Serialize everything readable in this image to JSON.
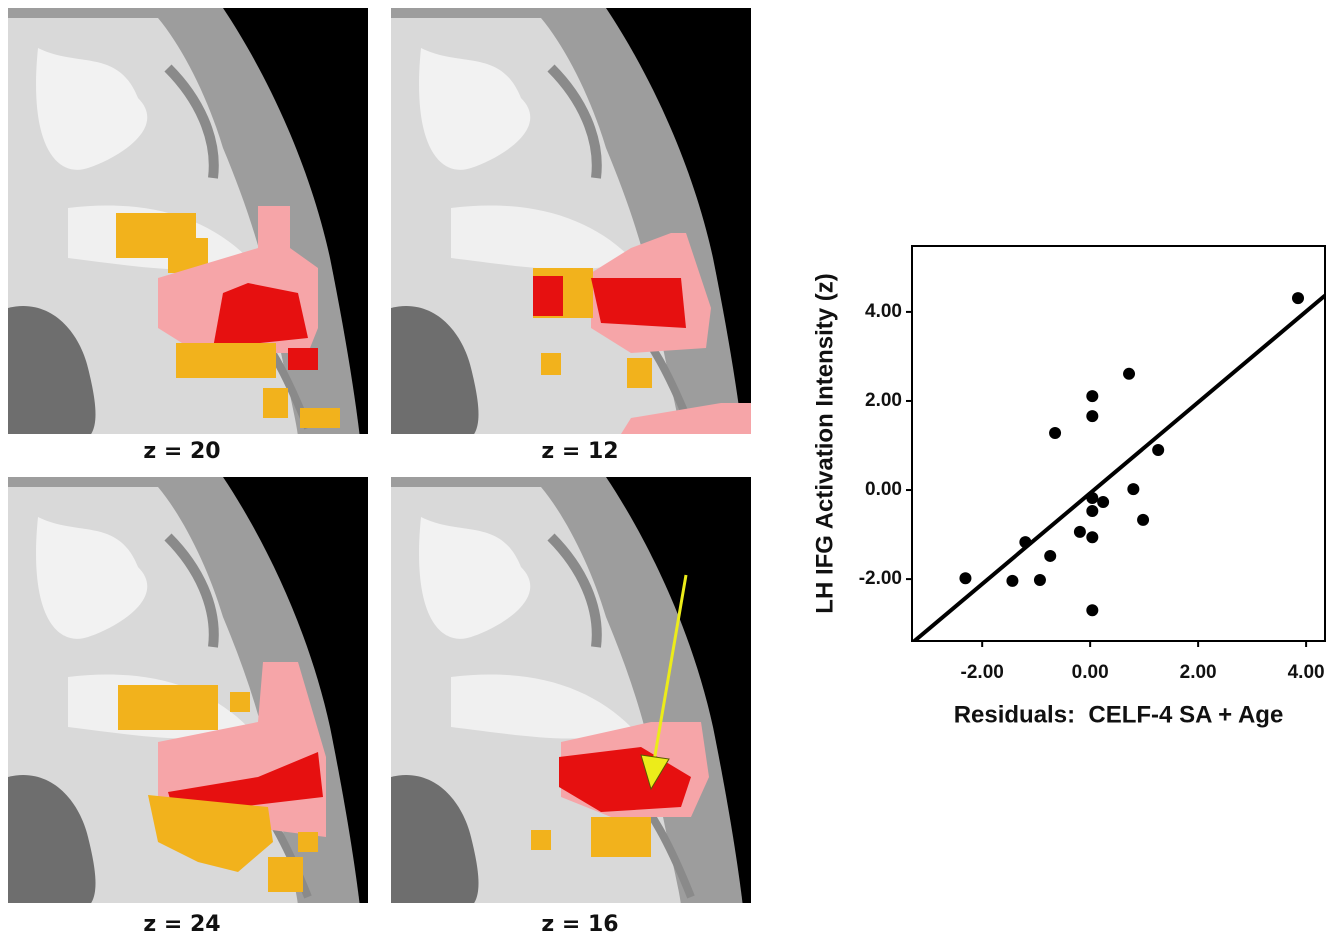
{
  "panels": [
    {
      "label": "z = 20"
    },
    {
      "label": "z = 12"
    },
    {
      "label": "z = 24"
    },
    {
      "label": "z = 16"
    }
  ],
  "chart_data": {
    "type": "scatter",
    "x_label": "Residuals:  CELF-4 SA + Age",
    "y_label": "LH IFG Activation Intensity (z)",
    "color": "#000000",
    "x": [
      3.85,
      0.72,
      0.04,
      0.04,
      -0.65,
      1.26,
      0.8,
      0.04,
      0.24,
      0.04,
      0.98,
      -0.19,
      0.04,
      -1.2,
      -0.74,
      -2.31,
      -1.44,
      -0.93,
      0.04
    ],
    "values": [
      4.31,
      2.61,
      2.11,
      1.66,
      1.28,
      0.9,
      0.02,
      -0.18,
      -0.27,
      -0.47,
      -0.67,
      -0.94,
      -1.06,
      -1.17,
      -1.48,
      -1.98,
      -2.04,
      -2.02,
      -2.7
    ],
    "fit_line": {
      "slope": 1.02,
      "intercept": -0.07
    },
    "xlim": [
      -3.3,
      4.35
    ],
    "ylim": [
      -3.39,
      5.48
    ],
    "xticks": [
      {
        "value": -2,
        "label": "-2.00"
      },
      {
        "value": 0,
        "label": "0.00"
      },
      {
        "value": 2,
        "label": "2.00"
      },
      {
        "value": 4,
        "label": "4.00"
      }
    ],
    "yticks": [
      {
        "value": -2,
        "label": "-2.00"
      },
      {
        "value": 0,
        "label": "0.00"
      },
      {
        "value": 2,
        "label": "2.00"
      },
      {
        "value": 4,
        "label": "4.00"
      }
    ]
  }
}
